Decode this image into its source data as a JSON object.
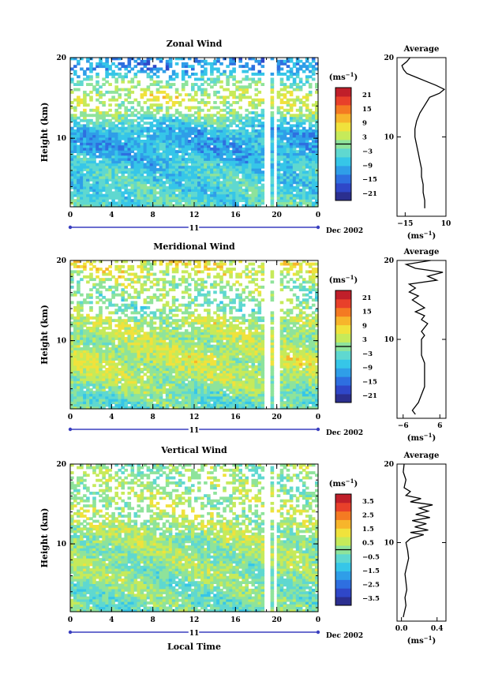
{
  "chart_data": [
    {
      "type": "heatmap",
      "title": "Zonal Wind",
      "xlabel": "",
      "ylabel": "Height (km)",
      "x_ticks": [
        "0",
        "4",
        "8",
        "12",
        "16",
        "20",
        "0"
      ],
      "y_ticks": [
        "10",
        "20"
      ],
      "date_axis": {
        "day": "11",
        "label": "Dec 2002"
      },
      "xlim": [
        0,
        24
      ],
      "ylim": [
        1.5,
        20
      ],
      "colorbar": {
        "unit_label": "(ms",
        "unit_exp": "−1",
        "close": ")",
        "ticks": [
          "21",
          "15",
          "9",
          "3",
          "−3",
          "−9",
          "−15",
          "−21"
        ],
        "range": [
          -24,
          24
        ]
      },
      "colors": [
        "#2b2f8f",
        "#2f47c8",
        "#2e6fe0",
        "#2f9ee8",
        "#36c6e8",
        "#5fd8d0",
        "#8ee39b",
        "#c6ea5a",
        "#f0e23c",
        "#f7b52b",
        "#f47a22",
        "#e8402a",
        "#c01f2a"
      ],
      "field": {
        "mean_by_height": [
          {
            "h": 2,
            "v": -4
          },
          {
            "h": 6,
            "v": -6
          },
          {
            "h": 9,
            "v": -10
          },
          {
            "h": 11,
            "v": -8
          },
          {
            "h": 13,
            "v": 0
          },
          {
            "h": 15,
            "v": 5
          },
          {
            "h": 17,
            "v": -2
          },
          {
            "h": 18.5,
            "v": -12
          }
        ],
        "gaps": [
          [
            18.5,
            19.2
          ],
          [
            19.6,
            19.9
          ]
        ]
      },
      "average_panel": {
        "title": "Average",
        "xlabel": "(ms",
        "xlabel_exp": "−1",
        "xlabel_close": ")",
        "x_ticks": [
          "−15",
          "10"
        ],
        "xlim": [
          -20,
          10
        ],
        "y_ticks": [
          "10",
          "20"
        ],
        "ylim": [
          0,
          20
        ],
        "profile": [
          [
            -3,
            1
          ],
          [
            -3,
            2
          ],
          [
            -4,
            3
          ],
          [
            -4,
            4
          ],
          [
            -5,
            5
          ],
          [
            -5,
            6
          ],
          [
            -6,
            7
          ],
          [
            -7,
            8
          ],
          [
            -8,
            9
          ],
          [
            -9,
            10
          ],
          [
            -9,
            11
          ],
          [
            -8,
            12
          ],
          [
            -6,
            13
          ],
          [
            -3,
            14
          ],
          [
            0,
            15
          ],
          [
            6,
            15.5
          ],
          [
            9,
            16
          ],
          [
            4,
            16.5
          ],
          [
            -2,
            17
          ],
          [
            -8,
            17.5
          ],
          [
            -14,
            18
          ],
          [
            -16,
            18.5
          ],
          [
            -17,
            19
          ],
          [
            -14,
            19.5
          ],
          [
            -12,
            20
          ]
        ]
      }
    },
    {
      "type": "heatmap",
      "title": "Meridional Wind",
      "xlabel": "",
      "ylabel": "Height (km)",
      "x_ticks": [
        "0",
        "4",
        "8",
        "12",
        "16",
        "20",
        "0"
      ],
      "y_ticks": [
        "10",
        "20"
      ],
      "date_axis": {
        "day": "11",
        "label": "Dec 2002"
      },
      "xlim": [
        0,
        24
      ],
      "ylim": [
        1.5,
        20
      ],
      "colorbar": {
        "unit_label": "(ms",
        "unit_exp": "−1",
        "close": ")",
        "ticks": [
          "21",
          "15",
          "9",
          "3",
          "−3",
          "−9",
          "−15",
          "−21"
        ],
        "range": [
          -24,
          24
        ]
      },
      "colors": [
        "#2b2f8f",
        "#2f47c8",
        "#2e6fe0",
        "#2f9ee8",
        "#36c6e8",
        "#5fd8d0",
        "#8ee39b",
        "#c6ea5a",
        "#f0e23c",
        "#f7b52b",
        "#f47a22",
        "#e8402a",
        "#c01f2a"
      ],
      "field": {
        "mean_by_height": [
          {
            "h": 2,
            "v": -3
          },
          {
            "h": 5,
            "v": 2
          },
          {
            "h": 8,
            "v": 4
          },
          {
            "h": 10,
            "v": 2
          },
          {
            "h": 12,
            "v": 3
          },
          {
            "h": 14,
            "v": -1
          },
          {
            "h": 17,
            "v": 1
          },
          {
            "h": 19,
            "v": 6
          }
        ],
        "gaps": [
          [
            18.6,
            19.3
          ],
          [
            19.6,
            20
          ]
        ]
      },
      "average_panel": {
        "title": "Average",
        "xlabel": "(ms",
        "xlabel_exp": "−1",
        "xlabel_close": ")",
        "x_ticks": [
          "−6",
          "6"
        ],
        "xlim": [
          -8,
          8
        ],
        "y_ticks": [
          "10",
          "20"
        ],
        "ylim": [
          0,
          20
        ],
        "profile": [
          [
            -2,
            0.5
          ],
          [
            -3,
            1
          ],
          [
            -1,
            2
          ],
          [
            0,
            3
          ],
          [
            1,
            4
          ],
          [
            1,
            5
          ],
          [
            1,
            6
          ],
          [
            1,
            7
          ],
          [
            0,
            8
          ],
          [
            0,
            9
          ],
          [
            0,
            10
          ],
          [
            1,
            10.5
          ],
          [
            0,
            11
          ],
          [
            2,
            12
          ],
          [
            0,
            12.5
          ],
          [
            1,
            13
          ],
          [
            -2,
            13.5
          ],
          [
            1,
            14
          ],
          [
            -3,
            15
          ],
          [
            -1,
            15.5
          ],
          [
            -4,
            16
          ],
          [
            -2,
            16.5
          ],
          [
            -4,
            17
          ],
          [
            5,
            17.5
          ],
          [
            2,
            18
          ],
          [
            7,
            18.5
          ],
          [
            -2,
            19
          ],
          [
            -5,
            19.5
          ],
          [
            3,
            20
          ]
        ]
      }
    },
    {
      "type": "heatmap",
      "title": "Vertical Wind",
      "xlabel": "Local Time",
      "ylabel": "Height (km)",
      "x_ticks": [
        "0",
        "4",
        "8",
        "12",
        "16",
        "20",
        "0"
      ],
      "y_ticks": [
        "10",
        "20"
      ],
      "date_axis": {
        "day": "11",
        "label": "Dec 2002"
      },
      "xlim": [
        0,
        24
      ],
      "ylim": [
        1.5,
        20
      ],
      "colorbar": {
        "unit_label": "(ms",
        "unit_exp": "−1",
        "close": ")",
        "ticks": [
          "3.5",
          "2.5",
          "1.5",
          "0.5",
          "−0.5",
          "−1.5",
          "−2.5",
          "−3.5"
        ],
        "range": [
          -4,
          4
        ]
      },
      "colors": [
        "#2b2f8f",
        "#2f47c8",
        "#2e6fe0",
        "#2f9ee8",
        "#36c6e8",
        "#5fd8d0",
        "#8ee39b",
        "#c6ea5a",
        "#f0e23c",
        "#f7b52b",
        "#f47a22",
        "#e8402a",
        "#c01f2a"
      ],
      "field": {
        "mean_by_height": [
          {
            "h": 2,
            "v": -0.3
          },
          {
            "h": 6,
            "v": 0
          },
          {
            "h": 10,
            "v": 0.2
          },
          {
            "h": 14,
            "v": 0.4
          },
          {
            "h": 18,
            "v": 0.1
          }
        ],
        "gaps": [
          [
            18.6,
            19.1
          ],
          [
            19.5,
            19.8
          ]
        ]
      },
      "average_panel": {
        "title": "Average",
        "xlabel": "(ms",
        "xlabel_exp": "−1",
        "xlabel_close": ")",
        "x_ticks": [
          "0.0",
          "0.4"
        ],
        "xlim": [
          -0.05,
          0.5
        ],
        "y_ticks": [
          "10",
          "20"
        ],
        "ylim": [
          0,
          20
        ],
        "profile": [
          [
            0.02,
            0.5
          ],
          [
            0.03,
            1
          ],
          [
            0.05,
            2
          ],
          [
            0.04,
            3
          ],
          [
            0.06,
            4
          ],
          [
            0.05,
            5
          ],
          [
            0.04,
            6
          ],
          [
            0.06,
            7
          ],
          [
            0.08,
            8
          ],
          [
            0.07,
            9
          ],
          [
            0.05,
            10
          ],
          [
            0.1,
            10.5
          ],
          [
            0.25,
            11
          ],
          [
            0.1,
            11.3
          ],
          [
            0.3,
            11.6
          ],
          [
            0.15,
            12
          ],
          [
            0.28,
            12.4
          ],
          [
            0.12,
            12.8
          ],
          [
            0.32,
            13.2
          ],
          [
            0.16,
            13.6
          ],
          [
            0.3,
            14
          ],
          [
            0.2,
            14.4
          ],
          [
            0.35,
            14.8
          ],
          [
            0.1,
            15.2
          ],
          [
            0.22,
            15.6
          ],
          [
            0.05,
            16
          ],
          [
            0.1,
            16.5
          ],
          [
            0.03,
            17
          ],
          [
            0.05,
            18
          ],
          [
            0.02,
            19
          ],
          [
            0.03,
            20
          ]
        ]
      }
    }
  ]
}
